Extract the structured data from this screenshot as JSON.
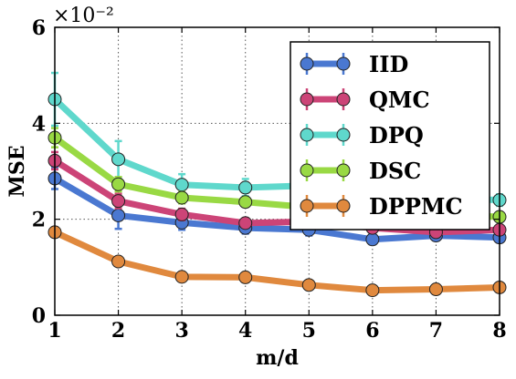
{
  "chart_data": {
    "type": "line",
    "title": "",
    "xlabel": "m/d",
    "ylabel": "MSE",
    "y_multiplier_label": "×10⁻²",
    "xlim": [
      1,
      8
    ],
    "ylim": [
      0,
      6
    ],
    "x_ticks": [
      "1",
      "2",
      "3",
      "4",
      "5",
      "6",
      "7",
      "8"
    ],
    "y_ticks": [
      "0",
      "2",
      "4",
      "6"
    ],
    "grid": true,
    "legend_position": "top-right",
    "x": [
      1,
      2,
      3,
      4,
      5,
      6,
      7,
      8
    ],
    "series": [
      {
        "name": "IID",
        "color": "#4a78d1",
        "values": [
          2.85,
          2.08,
          1.93,
          1.82,
          1.78,
          1.58,
          1.66,
          1.62
        ],
        "errors": [
          0.22,
          0.28,
          0.15,
          0.12,
          0.12,
          0.1,
          0.1,
          0.1
        ]
      },
      {
        "name": "QMC",
        "color": "#cc4477",
        "values": [
          3.22,
          2.38,
          2.1,
          1.92,
          1.95,
          1.82,
          1.73,
          1.78
        ],
        "errors": [
          0.18,
          0.15,
          0.12,
          0.1,
          0.1,
          0.1,
          0.1,
          0.1
        ]
      },
      {
        "name": "DPQ",
        "color": "#5fd8cc",
        "values": [
          4.5,
          3.25,
          2.72,
          2.66,
          2.7,
          2.5,
          2.45,
          2.4
        ],
        "errors": [
          0.55,
          0.38,
          0.22,
          0.18,
          0.15,
          0.15,
          0.12,
          0.12
        ]
      },
      {
        "name": "DSC",
        "color": "#99d944",
        "values": [
          3.7,
          2.73,
          2.45,
          2.36,
          2.25,
          2.15,
          2.1,
          2.05
        ],
        "errors": [
          0.2,
          0.15,
          0.12,
          0.1,
          0.1,
          0.1,
          0.1,
          0.1
        ]
      },
      {
        "name": "DPPMC",
        "color": "#e0893e",
        "values": [
          1.73,
          1.12,
          0.8,
          0.79,
          0.63,
          0.52,
          0.54,
          0.58
        ],
        "errors": [
          0.1,
          0.08,
          0.06,
          0.06,
          0.05,
          0.05,
          0.05,
          0.05
        ]
      }
    ]
  }
}
